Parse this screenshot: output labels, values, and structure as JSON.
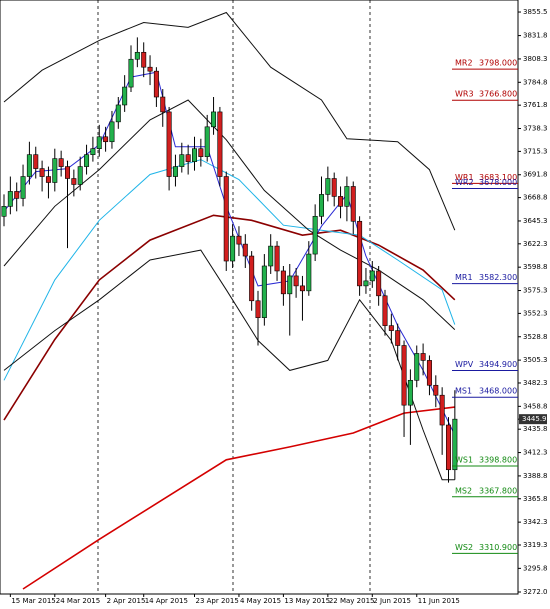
{
  "chart_data": {
    "type": "candlestick",
    "categories": [
      null,
      "15 Mar 2015",
      null,
      null,
      null,
      null,
      null,
      null,
      "24 Mar 2015",
      null,
      null,
      null,
      null,
      null,
      null,
      null,
      "2 Apr 2015",
      null,
      null,
      null,
      null,
      null,
      "14 Apr 2015",
      null,
      null,
      null,
      null,
      null,
      null,
      null,
      "23 Apr 2015",
      null,
      null,
      null,
      null,
      null,
      null,
      "4 May 2015",
      null,
      null,
      null,
      null,
      null,
      null,
      "13 May 2015",
      null,
      null,
      null,
      null,
      null,
      null,
      "22 May 2015",
      null,
      null,
      null,
      null,
      null,
      null,
      "2 Jun 2015",
      null,
      null,
      null,
      null,
      null,
      null,
      "11 Jun 2015",
      null,
      null,
      null,
      null,
      null,
      null
    ],
    "open": [
      3650,
      3660,
      3675,
      3668,
      3690,
      3712,
      3698,
      3690,
      3684,
      3708,
      3700,
      3688,
      3682,
      3700,
      3712,
      3718,
      3730,
      3725,
      3745,
      3762,
      3780,
      3808,
      3815,
      3800,
      3796,
      3770,
      3755,
      3690,
      3700,
      3712,
      3705,
      3718,
      3710,
      3740,
      3755,
      3690,
      3605,
      3630,
      3622,
      3610,
      3565,
      3548,
      3600,
      3620,
      3595,
      3572,
      3590,
      3580,
      3575,
      3612,
      3650,
      3672,
      3688,
      3670,
      3660,
      3680,
      3645,
      3580,
      3585,
      3595,
      3570,
      3540,
      3535,
      3520,
      3460,
      3485,
      3512,
      3505,
      3480,
      3470,
      3440,
      3395
    ],
    "high": [
      3672,
      3690,
      3684,
      3702,
      3725,
      3720,
      3706,
      3700,
      3718,
      3716,
      3706,
      3697,
      3710,
      3722,
      3730,
      3742,
      3740,
      3756,
      3770,
      3792,
      3822,
      3830,
      3825,
      3812,
      3800,
      3778,
      3760,
      3712,
      3724,
      3722,
      3730,
      3728,
      3752,
      3770,
      3760,
      3695,
      3642,
      3640,
      3632,
      3615,
      3575,
      3612,
      3632,
      3625,
      3600,
      3602,
      3598,
      3590,
      3625,
      3662,
      3690,
      3700,
      3694,
      3680,
      3690,
      3685,
      3650,
      3598,
      3605,
      3600,
      3576,
      3552,
      3542,
      3525,
      3496,
      3520,
      3522,
      3510,
      3490,
      3478,
      3448,
      3475
    ],
    "low": [
      3640,
      3652,
      3655,
      3660,
      3682,
      3688,
      3675,
      3668,
      3675,
      3690,
      3618,
      3670,
      3676,
      3692,
      3705,
      3710,
      3715,
      3718,
      3738,
      3755,
      3775,
      3800,
      3790,
      3782,
      3760,
      3740,
      3676,
      3680,
      3694,
      3692,
      3696,
      3700,
      3705,
      3732,
      3680,
      3595,
      3598,
      3610,
      3598,
      3555,
      3520,
      3540,
      3592,
      3585,
      3560,
      3530,
      3568,
      3545,
      3570,
      3605,
      3642,
      3665,
      3660,
      3648,
      3645,
      3632,
      3570,
      3572,
      3578,
      3560,
      3530,
      3522,
      3505,
      3428,
      3420,
      3478,
      3490,
      3470,
      3458,
      3410,
      3382,
      3385
    ],
    "close": [
      3660,
      3675,
      3668,
      3690,
      3712,
      3698,
      3690,
      3684,
      3708,
      3700,
      3688,
      3682,
      3700,
      3712,
      3718,
      3730,
      3725,
      3745,
      3762,
      3780,
      3808,
      3815,
      3800,
      3796,
      3770,
      3755,
      3690,
      3700,
      3712,
      3705,
      3718,
      3710,
      3740,
      3755,
      3690,
      3605,
      3630,
      3622,
      3610,
      3565,
      3548,
      3600,
      3620,
      3595,
      3572,
      3590,
      3580,
      3575,
      3612,
      3650,
      3672,
      3688,
      3670,
      3660,
      3680,
      3645,
      3580,
      3585,
      3595,
      3570,
      3540,
      3535,
      3520,
      3460,
      3485,
      3512,
      3505,
      3480,
      3470,
      3440,
      3395,
      3445.9
    ],
    "up_color": "#22b14c",
    "down_color": "#d11f1f",
    "lines": [
      {
        "color": "#d40000",
        "x": [
          3,
          15,
          25,
          35,
          45,
          55,
          63,
          71
        ],
        "values": [
          3275,
          3325,
          3365,
          3405,
          3418,
          3432,
          3452,
          3458
        ]
      },
      {
        "color": "#8b0000",
        "x": [
          0,
          8,
          15,
          23,
          33,
          39,
          47,
          53,
          59,
          66,
          71
        ],
        "values": [
          3445,
          3526,
          3586,
          3626,
          3651,
          3646,
          3631,
          3636,
          3621,
          3596,
          3566
        ]
      },
      {
        "color": "#1fb4e8",
        "x": [
          0,
          8,
          15,
          23,
          31,
          37,
          44,
          50,
          56,
          62,
          69,
          71
        ],
        "values": [
          3485,
          3586,
          3646,
          3692,
          3707,
          3687,
          3641,
          3636,
          3631,
          3606,
          3576,
          3541
        ]
      },
      {
        "color": "#111111",
        "x": [
          0,
          6,
          15,
          22,
          29,
          35,
          42,
          50,
          54,
          62,
          67,
          71
        ],
        "values": [
          3765,
          3797,
          3827,
          3845,
          3840,
          3855,
          3800,
          3767,
          3728,
          3725,
          3697,
          3636
        ]
      },
      {
        "color": "#111111",
        "x": [
          0,
          8,
          15,
          23,
          29,
          35,
          41,
          48,
          53,
          59,
          66,
          71
        ],
        "values": [
          3600,
          3660,
          3697,
          3747,
          3767,
          3727,
          3676,
          3636,
          3616,
          3596,
          3566,
          3536
        ]
      },
      {
        "color": "#111111",
        "x": [
          0,
          8,
          15,
          23,
          31,
          35,
          40,
          45,
          51,
          56,
          61,
          66,
          69,
          71
        ],
        "values": [
          3495,
          3535,
          3566,
          3606,
          3616,
          3576,
          3525,
          3495,
          3505,
          3566,
          3525,
          3435,
          3385,
          3385
        ]
      },
      {
        "color": "#2a2ad4",
        "x": [
          0,
          5,
          10,
          15,
          20,
          24,
          27,
          32,
          35,
          40,
          45,
          50,
          54,
          57,
          62,
          66,
          71
        ],
        "values": [
          3655,
          3695,
          3698,
          3722,
          3790,
          3795,
          3720,
          3720,
          3660,
          3580,
          3585,
          3640,
          3672,
          3610,
          3540,
          3495,
          3430
        ]
      }
    ],
    "pivots": [
      {
        "name": "MR2",
        "value": 3798,
        "label": "3798.000",
        "color": "#b00000"
      },
      {
        "name": "WR3",
        "value": 3766.8,
        "label": "3766.800",
        "color": "#b00000"
      },
      {
        "name": "WR1",
        "value": 3683.1,
        "label": "3683.100",
        "color": "#b00000"
      },
      {
        "name": "WR2",
        "value": 3678,
        "label": "3678.000",
        "color": "#1a1aa0"
      },
      {
        "name": "MR1",
        "value": 3582.3,
        "label": "3582.300",
        "color": "#1a1aa0"
      },
      {
        "name": "WPV",
        "value": 3494.9,
        "label": "3494.900",
        "color": "#1a1aa0"
      },
      {
        "name": "MS1",
        "value": 3468,
        "label": "3468.000",
        "color": "#1a1aa0"
      },
      {
        "name": "WS1",
        "value": 3398.8,
        "label": "3398.800",
        "color": "#138a13"
      },
      {
        "name": "MS2",
        "value": 3367.8,
        "label": "3367.800",
        "color": "#138a13"
      },
      {
        "name": "WS2",
        "value": 3310.9,
        "label": "3310.900",
        "color": "#138a13"
      }
    ],
    "current_price": 3445.9,
    "ylim": [
      3270,
      3867.6
    ],
    "yticks": [
      3855.5,
      3831.8,
      3808.3,
      3784.8,
      3761.8,
      3738.3,
      3715.3,
      3691.8,
      3668.8,
      3645.3,
      3622.3,
      3598.8,
      3575.3,
      3552.3,
      3528.8,
      3505.3,
      3482.3,
      3458.8,
      3435.8,
      3412.3,
      3388.8,
      3365.8,
      3342.3,
      3319.3,
      3295.8,
      {
        "value": 3272,
        "label": "3272.0"
      }
    ]
  }
}
